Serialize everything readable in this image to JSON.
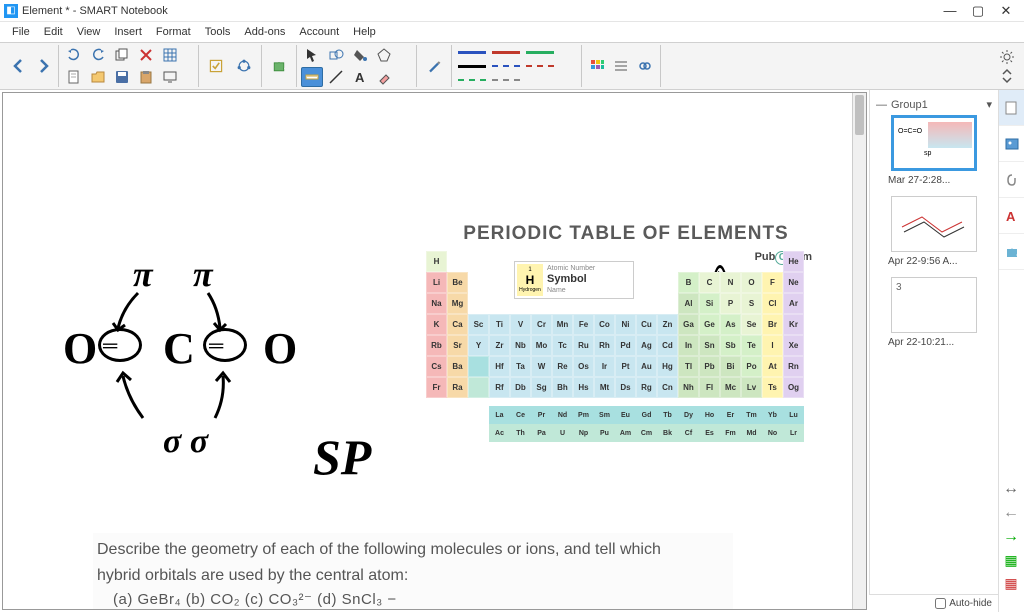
{
  "window": {
    "title": "Element * - SMART Notebook"
  },
  "menu": {
    "items": [
      "File",
      "Edit",
      "View",
      "Insert",
      "Format",
      "Tools",
      "Add-ons",
      "Account",
      "Help"
    ]
  },
  "sidebar": {
    "group": "Group1",
    "thumbs": [
      {
        "label": "Mar 27-2:28..."
      },
      {
        "label": "Apr 22-9:56 A..."
      },
      {
        "label": "Apr 22-10:21..."
      }
    ],
    "autohide": "Auto-hide"
  },
  "periodic": {
    "title": "PERIODIC TABLE OF ELEMENTS",
    "brand": "Pub",
    "brand2": "hem",
    "legend_symbol": "H",
    "legend_name": "Hydrogen",
    "legend_lbl_sym": "Symbol",
    "legend_lbl_num": "Atomic Number",
    "legend_lbl_name": "Name",
    "colors": {
      "alkali": "#f5b8b8",
      "alkaline": "#f7d9a8",
      "transition": "#c8e6f0",
      "post": "#cde6c0",
      "metalloid": "#d4f0c8",
      "nonmetal": "#e8f4d4",
      "halogen": "#fff4b0",
      "noble": "#e0d0f0",
      "lanth": "#a8e0e0",
      "actin": "#c0e8d8"
    },
    "rows": [
      [
        {
          "s": "H",
          "c": "nonmetal",
          "x": 0
        },
        {
          "s": "He",
          "c": "noble",
          "x": 17
        }
      ],
      [
        {
          "s": "Li",
          "c": "alkali",
          "x": 0
        },
        {
          "s": "Be",
          "c": "alkaline",
          "x": 1
        },
        {
          "s": "B",
          "c": "metalloid",
          "x": 12
        },
        {
          "s": "C",
          "c": "nonmetal",
          "x": 13
        },
        {
          "s": "N",
          "c": "nonmetal",
          "x": 14
        },
        {
          "s": "O",
          "c": "nonmetal",
          "x": 15
        },
        {
          "s": "F",
          "c": "halogen",
          "x": 16
        },
        {
          "s": "Ne",
          "c": "noble",
          "x": 17
        }
      ],
      [
        {
          "s": "Na",
          "c": "alkali",
          "x": 0
        },
        {
          "s": "Mg",
          "c": "alkaline",
          "x": 1
        },
        {
          "s": "Al",
          "c": "post",
          "x": 12
        },
        {
          "s": "Si",
          "c": "metalloid",
          "x": 13
        },
        {
          "s": "P",
          "c": "nonmetal",
          "x": 14
        },
        {
          "s": "S",
          "c": "nonmetal",
          "x": 15
        },
        {
          "s": "Cl",
          "c": "halogen",
          "x": 16
        },
        {
          "s": "Ar",
          "c": "noble",
          "x": 17
        }
      ],
      [
        {
          "s": "K",
          "c": "alkali",
          "x": 0
        },
        {
          "s": "Ca",
          "c": "alkaline",
          "x": 1
        },
        {
          "s": "Sc",
          "c": "transition",
          "x": 2
        },
        {
          "s": "Ti",
          "c": "transition",
          "x": 3
        },
        {
          "s": "V",
          "c": "transition",
          "x": 4
        },
        {
          "s": "Cr",
          "c": "transition",
          "x": 5
        },
        {
          "s": "Mn",
          "c": "transition",
          "x": 6
        },
        {
          "s": "Fe",
          "c": "transition",
          "x": 7
        },
        {
          "s": "Co",
          "c": "transition",
          "x": 8
        },
        {
          "s": "Ni",
          "c": "transition",
          "x": 9
        },
        {
          "s": "Cu",
          "c": "transition",
          "x": 10
        },
        {
          "s": "Zn",
          "c": "transition",
          "x": 11
        },
        {
          "s": "Ga",
          "c": "post",
          "x": 12
        },
        {
          "s": "Ge",
          "c": "metalloid",
          "x": 13
        },
        {
          "s": "As",
          "c": "metalloid",
          "x": 14
        },
        {
          "s": "Se",
          "c": "nonmetal",
          "x": 15
        },
        {
          "s": "Br",
          "c": "halogen",
          "x": 16
        },
        {
          "s": "Kr",
          "c": "noble",
          "x": 17
        }
      ],
      [
        {
          "s": "Rb",
          "c": "alkali",
          "x": 0
        },
        {
          "s": "Sr",
          "c": "alkaline",
          "x": 1
        },
        {
          "s": "Y",
          "c": "transition",
          "x": 2
        },
        {
          "s": "Zr",
          "c": "transition",
          "x": 3
        },
        {
          "s": "Nb",
          "c": "transition",
          "x": 4
        },
        {
          "s": "Mo",
          "c": "transition",
          "x": 5
        },
        {
          "s": "Tc",
          "c": "transition",
          "x": 6
        },
        {
          "s": "Ru",
          "c": "transition",
          "x": 7
        },
        {
          "s": "Rh",
          "c": "transition",
          "x": 8
        },
        {
          "s": "Pd",
          "c": "transition",
          "x": 9
        },
        {
          "s": "Ag",
          "c": "transition",
          "x": 10
        },
        {
          "s": "Cd",
          "c": "transition",
          "x": 11
        },
        {
          "s": "In",
          "c": "post",
          "x": 12
        },
        {
          "s": "Sn",
          "c": "post",
          "x": 13
        },
        {
          "s": "Sb",
          "c": "metalloid",
          "x": 14
        },
        {
          "s": "Te",
          "c": "metalloid",
          "x": 15
        },
        {
          "s": "I",
          "c": "halogen",
          "x": 16
        },
        {
          "s": "Xe",
          "c": "noble",
          "x": 17
        }
      ],
      [
        {
          "s": "Cs",
          "c": "alkali",
          "x": 0
        },
        {
          "s": "Ba",
          "c": "alkaline",
          "x": 1
        },
        {
          "s": "",
          "c": "lanth",
          "x": 2
        },
        {
          "s": "Hf",
          "c": "transition",
          "x": 3
        },
        {
          "s": "Ta",
          "c": "transition",
          "x": 4
        },
        {
          "s": "W",
          "c": "transition",
          "x": 5
        },
        {
          "s": "Re",
          "c": "transition",
          "x": 6
        },
        {
          "s": "Os",
          "c": "transition",
          "x": 7
        },
        {
          "s": "Ir",
          "c": "transition",
          "x": 8
        },
        {
          "s": "Pt",
          "c": "transition",
          "x": 9
        },
        {
          "s": "Au",
          "c": "transition",
          "x": 10
        },
        {
          "s": "Hg",
          "c": "transition",
          "x": 11
        },
        {
          "s": "Tl",
          "c": "post",
          "x": 12
        },
        {
          "s": "Pb",
          "c": "post",
          "x": 13
        },
        {
          "s": "Bi",
          "c": "post",
          "x": 14
        },
        {
          "s": "Po",
          "c": "metalloid",
          "x": 15
        },
        {
          "s": "At",
          "c": "halogen",
          "x": 16
        },
        {
          "s": "Rn",
          "c": "noble",
          "x": 17
        }
      ],
      [
        {
          "s": "Fr",
          "c": "alkali",
          "x": 0
        },
        {
          "s": "Ra",
          "c": "alkaline",
          "x": 1
        },
        {
          "s": "",
          "c": "actin",
          "x": 2
        },
        {
          "s": "Rf",
          "c": "transition",
          "x": 3
        },
        {
          "s": "Db",
          "c": "transition",
          "x": 4
        },
        {
          "s": "Sg",
          "c": "transition",
          "x": 5
        },
        {
          "s": "Bh",
          "c": "transition",
          "x": 6
        },
        {
          "s": "Hs",
          "c": "transition",
          "x": 7
        },
        {
          "s": "Mt",
          "c": "transition",
          "x": 8
        },
        {
          "s": "Ds",
          "c": "transition",
          "x": 9
        },
        {
          "s": "Rg",
          "c": "transition",
          "x": 10
        },
        {
          "s": "Cn",
          "c": "transition",
          "x": 11
        },
        {
          "s": "Nh",
          "c": "post",
          "x": 12
        },
        {
          "s": "Fl",
          "c": "post",
          "x": 13
        },
        {
          "s": "Mc",
          "c": "post",
          "x": 14
        },
        {
          "s": "Lv",
          "c": "post",
          "x": 15
        },
        {
          "s": "Ts",
          "c": "halogen",
          "x": 16
        },
        {
          "s": "Og",
          "c": "noble",
          "x": 17
        }
      ]
    ],
    "frows": [
      [
        "La",
        "Ce",
        "Pr",
        "Nd",
        "Pm",
        "Sm",
        "Eu",
        "Gd",
        "Tb",
        "Dy",
        "Ho",
        "Er",
        "Tm",
        "Yb",
        "Lu"
      ],
      [
        "Ac",
        "Th",
        "Pa",
        "U",
        "Np",
        "Pu",
        "Am",
        "Cm",
        "Bk",
        "Cf",
        "Es",
        "Fm",
        "Md",
        "No",
        "Lr"
      ]
    ]
  },
  "question": {
    "line1": "Describe the geometry of each of the following molecules or ions, and tell which",
    "line2": "hybrid orbitals are used by the central atom:",
    "opts": "(a)  GeBr₄     (b) CO₂     (c) CO₃²⁻      (d) SnCl₃ −"
  },
  "drawing": {
    "pi1": "π",
    "pi2": "π",
    "o_left": "O",
    "c_mid": "C",
    "o_right": "O",
    "sigma": "σ σ",
    "sp": "SP"
  },
  "line_colors": {
    "solid": [
      "#2a52be",
      "#c0392b",
      "#27ae60",
      "#000000"
    ],
    "dashed": [
      "#2a52be",
      "#c0392b",
      "#27ae60",
      "#888888"
    ]
  }
}
